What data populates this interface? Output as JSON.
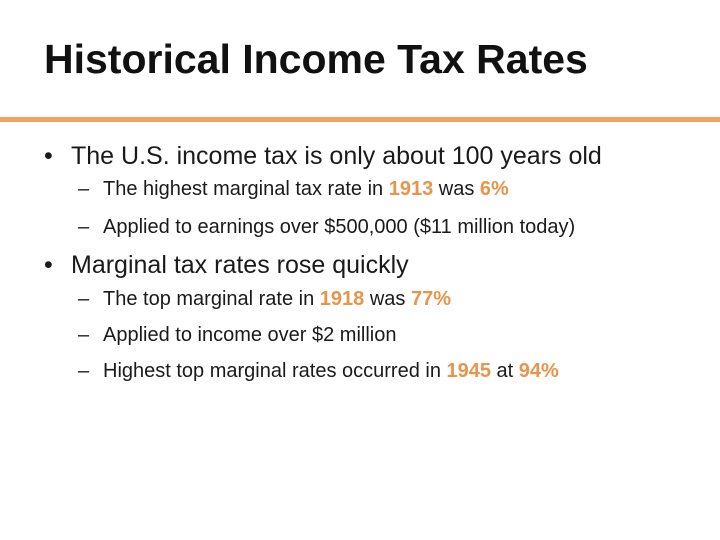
{
  "slide": {
    "title": "Historical Income Tax Rates",
    "accent_color": "#f0a35e",
    "highlight_color": "#e8944b"
  },
  "bullets": [
    {
      "marker": "•",
      "text": "The U.S. income tax is only about 100 years old",
      "subs": [
        {
          "marker": "–",
          "t1": "The highest marginal tax rate in ",
          "h1": "1913",
          "t2": " was ",
          "h2": "6%"
        },
        {
          "marker": "–",
          "t1": "Applied to earnings over $500,000 ($11 million today)"
        }
      ]
    },
    {
      "marker": "•",
      "text": "Marginal tax rates rose quickly",
      "subs": [
        {
          "marker": "–",
          "t1": "The top marginal rate in ",
          "h1": "1918",
          "t2": " was ",
          "h2": "77%"
        },
        {
          "marker": "–",
          "t1": "Applied to income over $2 million"
        },
        {
          "marker": "–",
          "t1": "Highest top marginal rates occurred in ",
          "h1": "1945",
          "t2": " at ",
          "h2": "94%"
        }
      ]
    }
  ]
}
